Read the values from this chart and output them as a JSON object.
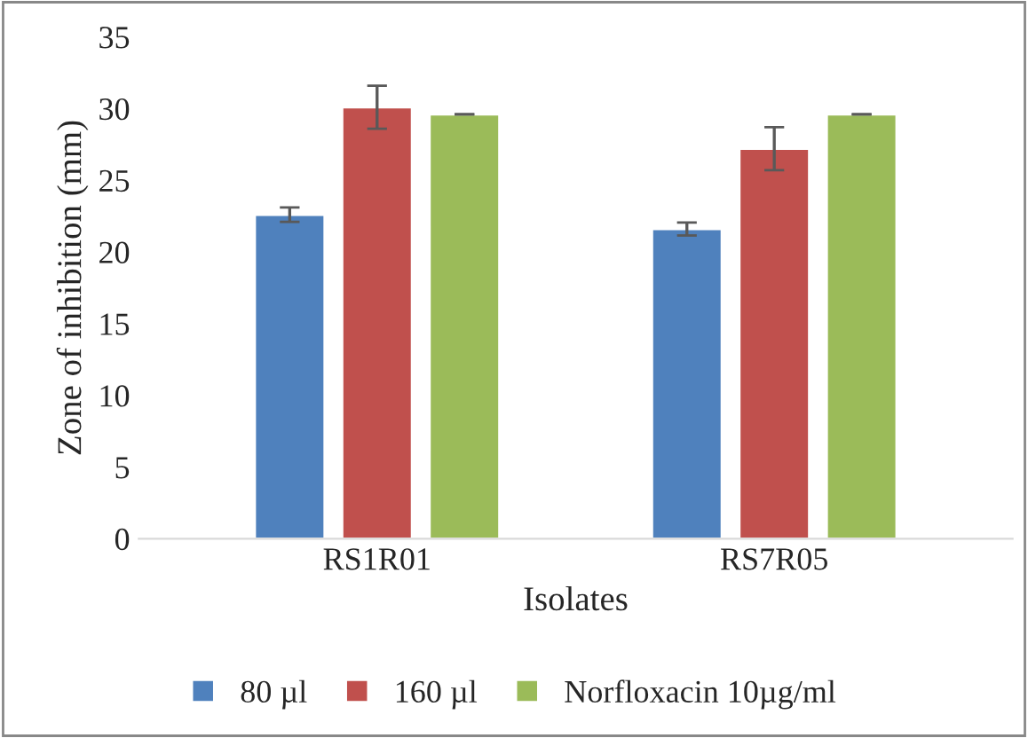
{
  "chart_data": {
    "type": "bar",
    "xlabel": "Isolates",
    "ylabel": "Zone of inhibition (mm)",
    "categories": [
      "RS1R01",
      "RS7R05"
    ],
    "series": [
      {
        "name": "80 µl",
        "color": "#4f81bd",
        "values": [
          22.6,
          21.6
        ],
        "errors": [
          0.5,
          0.45
        ]
      },
      {
        "name": "160 µl",
        "color": "#c0504d",
        "values": [
          30.1,
          27.2
        ],
        "errors": [
          1.5,
          1.5
        ]
      },
      {
        "name": "Norfloxacin 10µg/ml",
        "color": "#9bbb59",
        "values": [
          29.6,
          29.6
        ],
        "errors": [
          0,
          0
        ]
      }
    ],
    "ylim": [
      0,
      35
    ],
    "yticks": [
      0,
      5,
      10,
      15,
      20,
      25,
      30,
      35
    ],
    "grid": false,
    "legend": "bottom"
  }
}
